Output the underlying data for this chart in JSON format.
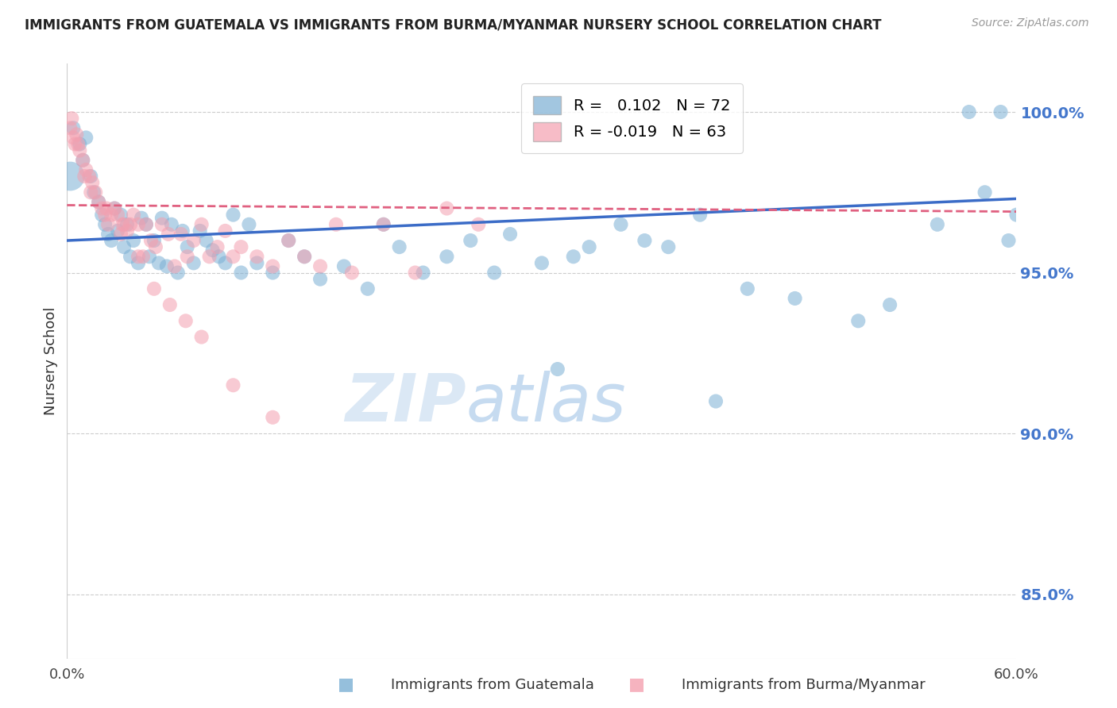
{
  "title": "IMMIGRANTS FROM GUATEMALA VS IMMIGRANTS FROM BURMA/MYANMAR NURSERY SCHOOL CORRELATION CHART",
  "source": "Source: ZipAtlas.com",
  "ylabel": "Nursery School",
  "legend_label1": "Immigrants from Guatemala",
  "legend_label2": "Immigrants from Burma/Myanmar",
  "legend_R1": " 0.102",
  "legend_N1": "72",
  "legend_R2": "-0.019",
  "legend_N2": "63",
  "xlim": [
    0.0,
    60.0
  ],
  "ylim": [
    83.0,
    101.5
  ],
  "yticks": [
    85.0,
    90.0,
    95.0,
    100.0
  ],
  "xticks": [
    0.0,
    10.0,
    20.0,
    30.0,
    40.0,
    50.0,
    60.0
  ],
  "color_blue": "#7BAFD4",
  "color_pink": "#F4A0B0",
  "color_blue_line": "#3B6CC7",
  "color_pink_line": "#E06080",
  "color_axis_labels": "#4477CC",
  "watermark": "ZIPatlas",
  "blue_scatter_x": [
    0.4,
    0.8,
    1.0,
    1.2,
    1.5,
    1.7,
    2.0,
    2.2,
    2.4,
    2.6,
    2.8,
    3.0,
    3.2,
    3.4,
    3.6,
    3.8,
    4.0,
    4.2,
    4.5,
    4.7,
    5.0,
    5.2,
    5.5,
    5.8,
    6.0,
    6.3,
    6.6,
    7.0,
    7.3,
    7.6,
    8.0,
    8.4,
    8.8,
    9.2,
    9.6,
    10.0,
    10.5,
    11.0,
    11.5,
    12.0,
    13.0,
    14.0,
    15.0,
    16.0,
    17.5,
    19.0,
    20.0,
    21.0,
    22.5,
    24.0,
    25.5,
    27.0,
    28.0,
    30.0,
    32.0,
    33.0,
    35.0,
    36.5,
    38.0,
    40.0,
    43.0,
    46.0,
    50.0,
    52.0,
    55.0,
    57.0,
    58.0,
    59.0,
    59.5,
    60.0,
    31.0,
    41.0
  ],
  "blue_scatter_y": [
    99.5,
    99.0,
    98.5,
    99.2,
    98.0,
    97.5,
    97.2,
    96.8,
    96.5,
    96.2,
    96.0,
    97.0,
    96.3,
    96.8,
    95.8,
    96.5,
    95.5,
    96.0,
    95.3,
    96.7,
    96.5,
    95.5,
    96.0,
    95.3,
    96.7,
    95.2,
    96.5,
    95.0,
    96.3,
    95.8,
    95.3,
    96.3,
    96.0,
    95.7,
    95.5,
    95.3,
    96.8,
    95.0,
    96.5,
    95.3,
    95.0,
    96.0,
    95.5,
    94.8,
    95.2,
    94.5,
    96.5,
    95.8,
    95.0,
    95.5,
    96.0,
    95.0,
    96.2,
    95.3,
    95.5,
    95.8,
    96.5,
    96.0,
    95.8,
    96.8,
    94.5,
    94.2,
    93.5,
    94.0,
    96.5,
    100.0,
    97.5,
    100.0,
    96.0,
    96.8,
    92.0,
    91.0
  ],
  "pink_scatter_x": [
    0.2,
    0.4,
    0.5,
    0.6,
    0.8,
    1.0,
    1.2,
    1.4,
    1.6,
    1.8,
    2.0,
    2.2,
    2.4,
    2.6,
    2.8,
    3.0,
    3.2,
    3.4,
    3.6,
    3.8,
    4.0,
    4.2,
    4.5,
    4.8,
    5.0,
    5.3,
    5.6,
    6.0,
    6.4,
    6.8,
    7.2,
    7.6,
    8.0,
    8.5,
    9.0,
    9.5,
    10.0,
    10.5,
    11.0,
    12.0,
    13.0,
    14.0,
    15.0,
    16.0,
    17.0,
    18.0,
    20.0,
    22.0,
    24.0,
    26.0,
    0.3,
    0.7,
    1.1,
    1.5,
    2.5,
    3.5,
    4.5,
    5.5,
    6.5,
    7.5,
    8.5,
    10.5,
    13.0
  ],
  "pink_scatter_y": [
    99.5,
    99.2,
    99.0,
    99.3,
    98.8,
    98.5,
    98.2,
    98.0,
    97.8,
    97.5,
    97.2,
    97.0,
    96.8,
    96.5,
    96.8,
    97.0,
    96.8,
    96.2,
    96.5,
    96.3,
    96.5,
    96.8,
    96.5,
    95.5,
    96.5,
    96.0,
    95.8,
    96.5,
    96.2,
    95.2,
    96.2,
    95.5,
    96.0,
    96.5,
    95.5,
    95.8,
    96.3,
    95.5,
    95.8,
    95.5,
    95.2,
    96.0,
    95.5,
    95.2,
    96.5,
    95.0,
    96.5,
    95.0,
    97.0,
    96.5,
    99.8,
    99.0,
    98.0,
    97.5,
    97.0,
    96.5,
    95.5,
    94.5,
    94.0,
    93.5,
    93.0,
    91.5,
    90.5
  ],
  "blue_line_x": [
    0.0,
    60.0
  ],
  "blue_line_y": [
    96.0,
    97.3
  ],
  "pink_line_x": [
    0.0,
    60.0
  ],
  "pink_line_y": [
    97.1,
    96.9
  ]
}
